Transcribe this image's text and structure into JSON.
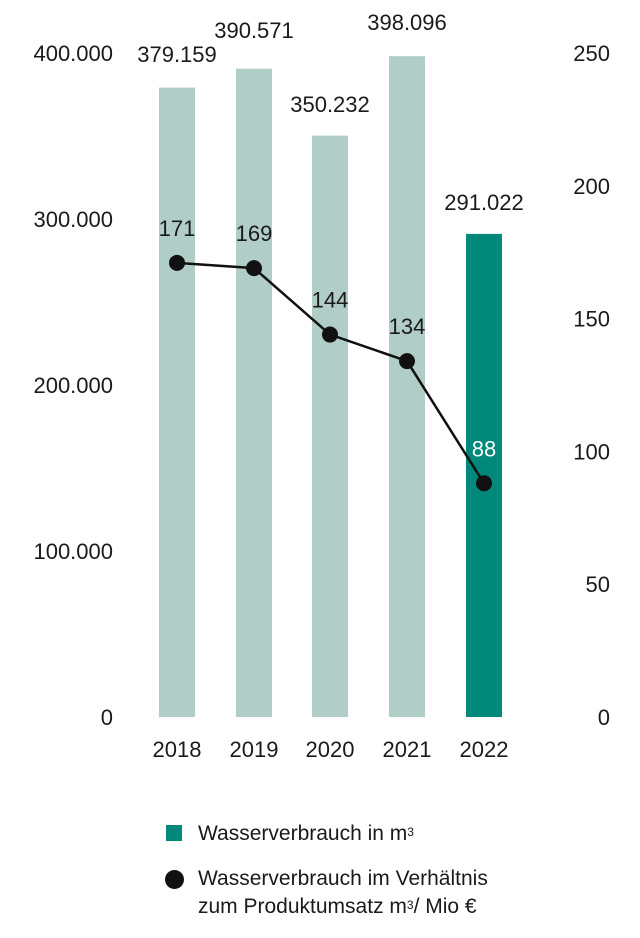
{
  "chart_data": {
    "type": "bar",
    "categories": [
      "2018",
      "2019",
      "2020",
      "2021",
      "2022"
    ],
    "series": [
      {
        "type": "bar",
        "axis": "left",
        "values": [
          379159,
          390571,
          350232,
          398096,
          291022
        ],
        "labels": [
          "379.159",
          "390.571",
          "350.232",
          "398.096",
          "291.022"
        ],
        "colors": [
          "#b0cdc7",
          "#b0cdc7",
          "#b0cdc7",
          "#b0cdc7",
          "#00897b"
        ]
      },
      {
        "type": "line",
        "axis": "right",
        "values": [
          171,
          169,
          144,
          134,
          88
        ],
        "labels": [
          "171",
          "169",
          "144",
          "134",
          "88"
        ],
        "color": "#111111"
      }
    ],
    "y_left": {
      "range": [
        0,
        400000
      ],
      "ticks": [
        "0",
        "100.000",
        "200.000",
        "300.000",
        "400.000"
      ],
      "values": [
        0,
        100000,
        200000,
        300000,
        400000
      ]
    },
    "y_right": {
      "range": [
        0,
        250
      ],
      "ticks": [
        "0",
        "50",
        "100",
        "150",
        "200",
        "250"
      ],
      "values": [
        0,
        50,
        100,
        150,
        200,
        250
      ]
    },
    "grid": false,
    "legend_position": "bottom"
  },
  "legend": {
    "bar_label": "Wasserverbrauch in m",
    "bar_label_sup": "3",
    "line_label_1": "Wasserverbrauch im Verhältnis",
    "line_label_2a": "zum Produktumsatz m",
    "line_label_sup": "3",
    "line_label_2b": "/ Mio €"
  }
}
